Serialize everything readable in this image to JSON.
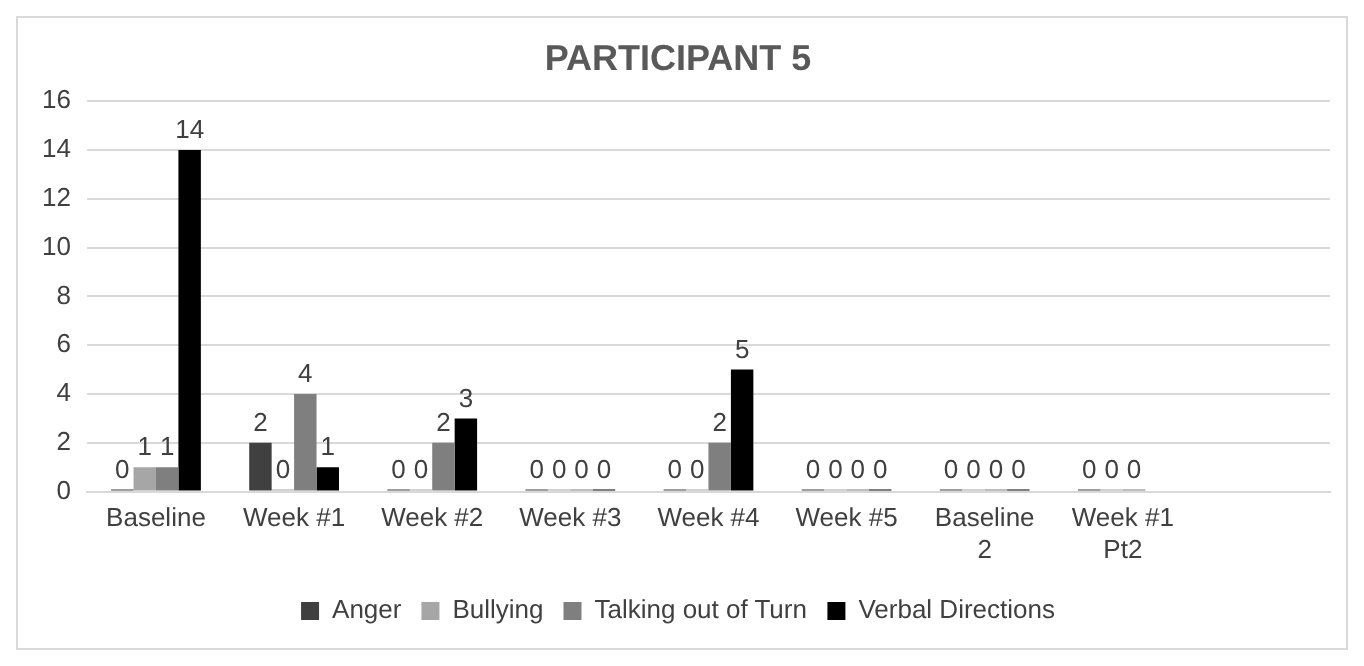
{
  "chart_data": {
    "type": "bar",
    "title": "PARTICIPANT 5",
    "categories": [
      "Baseline",
      "Week #1",
      "Week #2",
      "Week #3",
      "Week #4",
      "Week #5",
      "Baseline 2",
      "Week #1 Pt2",
      null
    ],
    "series": [
      {
        "name": "Anger",
        "color": "#404040",
        "values": [
          0,
          2,
          0,
          0,
          0,
          0,
          0,
          0,
          null
        ]
      },
      {
        "name": "Bullying",
        "color": "#a6a6a6",
        "values": [
          1,
          0,
          0,
          0,
          0,
          0,
          0,
          0,
          null
        ]
      },
      {
        "name": "Talking out of Turn",
        "color": "#7f7f7f",
        "values": [
          1,
          4,
          2,
          0,
          2,
          0,
          0,
          0,
          null
        ]
      },
      {
        "name": "Verbal Directions",
        "color": "#000000",
        "values": [
          14,
          1,
          3,
          0,
          5,
          0,
          0,
          null,
          null
        ]
      }
    ],
    "ylim": [
      0,
      16
    ],
    "yticks": [
      0,
      2,
      4,
      6,
      8,
      10,
      12,
      14,
      16
    ],
    "grid": "y",
    "legend": "bottom",
    "data_labels": true
  }
}
